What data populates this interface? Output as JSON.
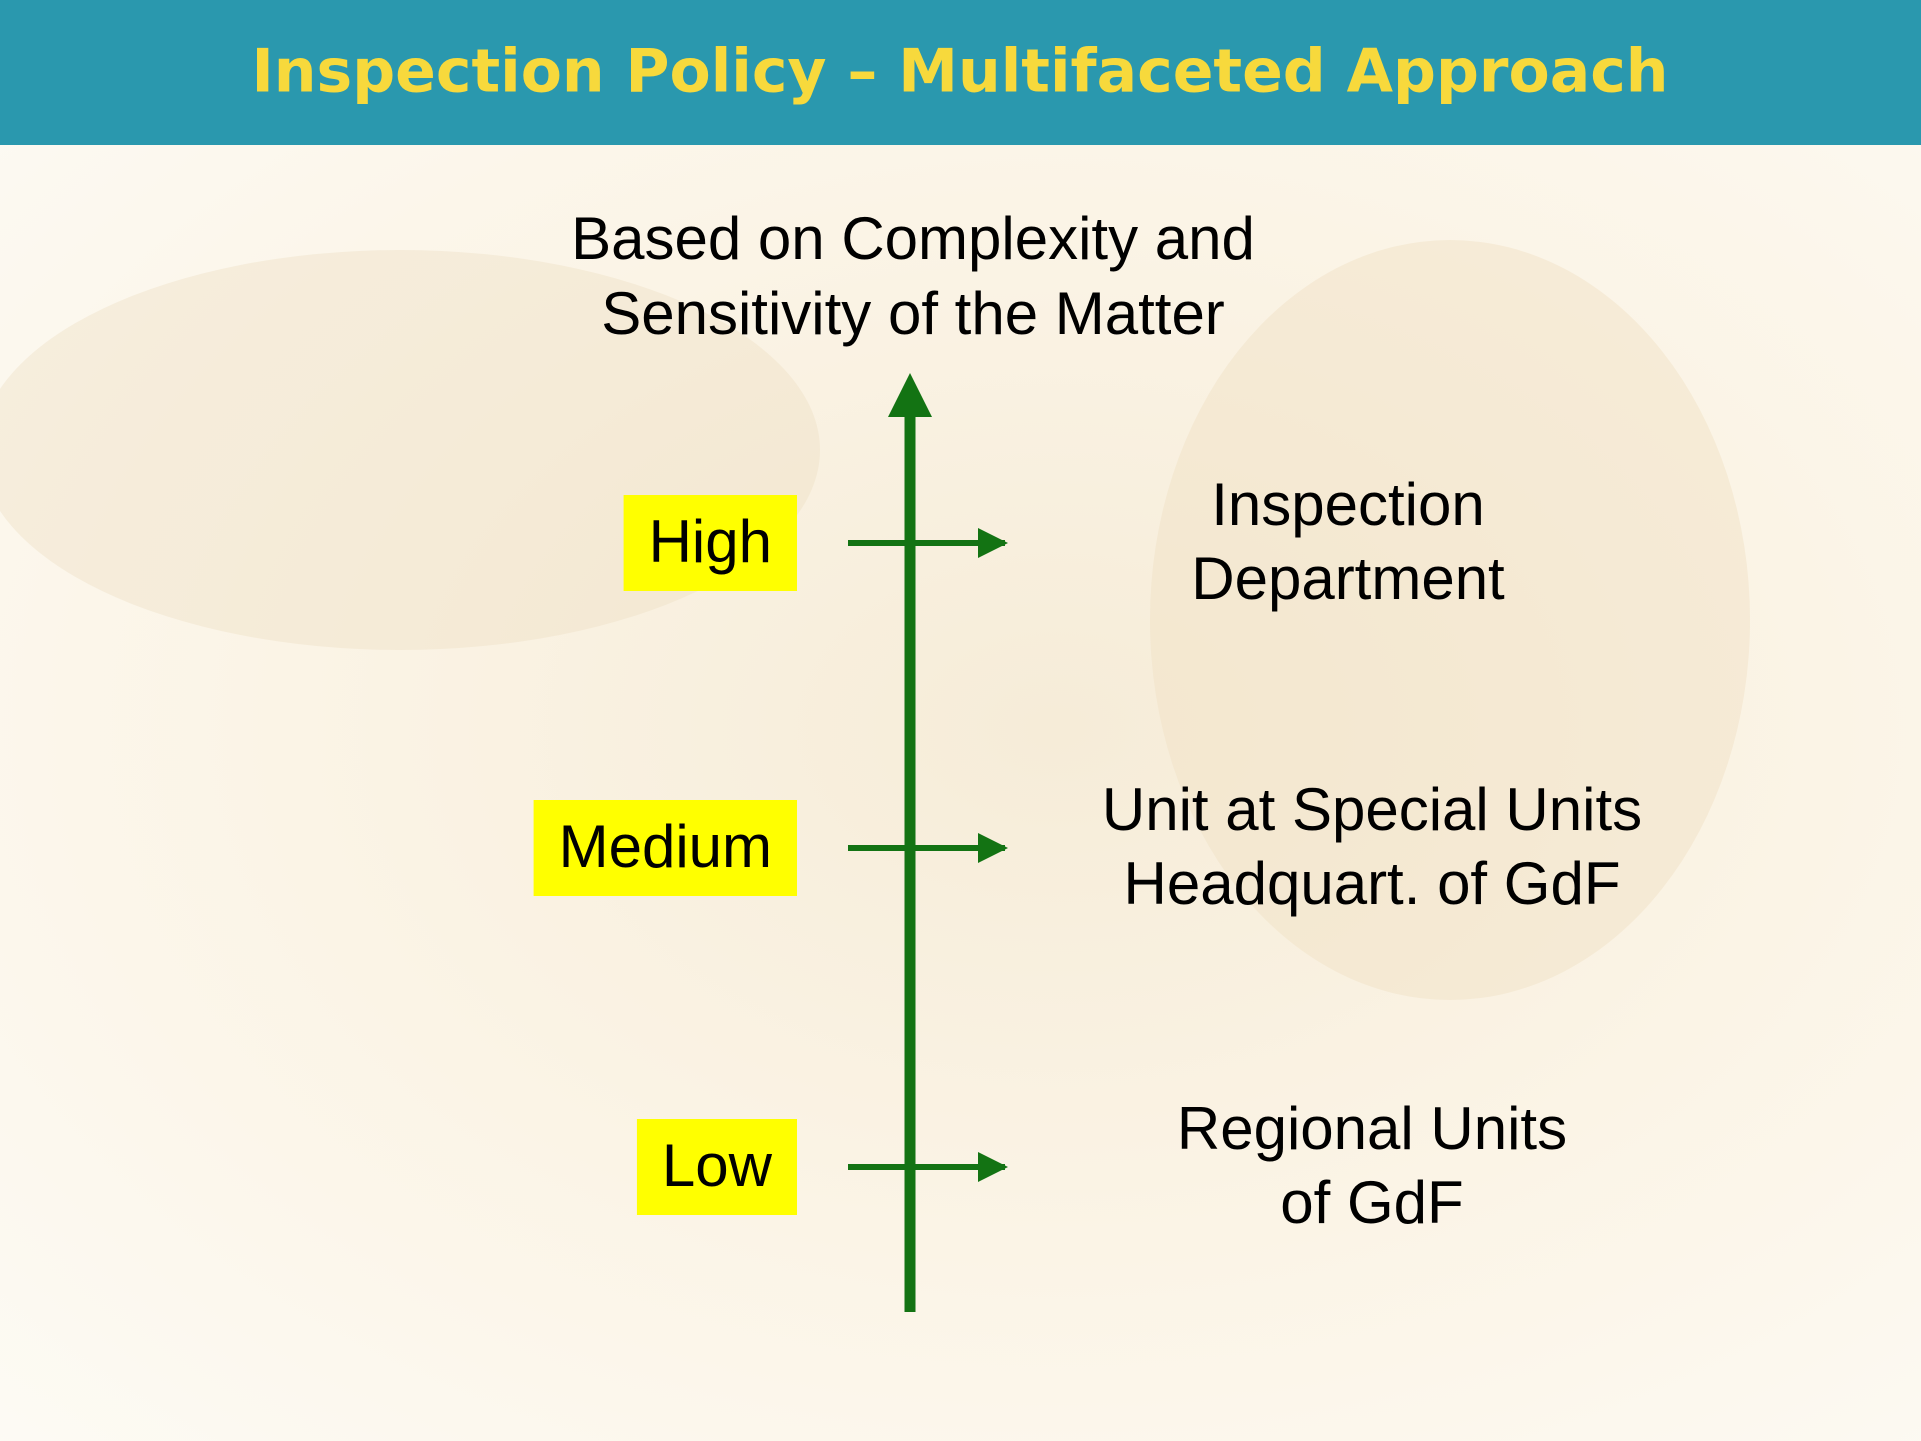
{
  "header": {
    "title": "Inspection Policy – Multifaceted Approach"
  },
  "axis_label": [
    "Based on Complexity and",
    "Sensitivity of the Matter"
  ],
  "levels": [
    {
      "label": "High",
      "unit": [
        "Inspection",
        "Department"
      ]
    },
    {
      "label": "Medium",
      "unit": [
        "Unit at Special Units",
        "Headquart. of GdF"
      ]
    },
    {
      "label": "Low",
      "unit": [
        "Regional Units",
        "of GdF"
      ]
    }
  ]
}
